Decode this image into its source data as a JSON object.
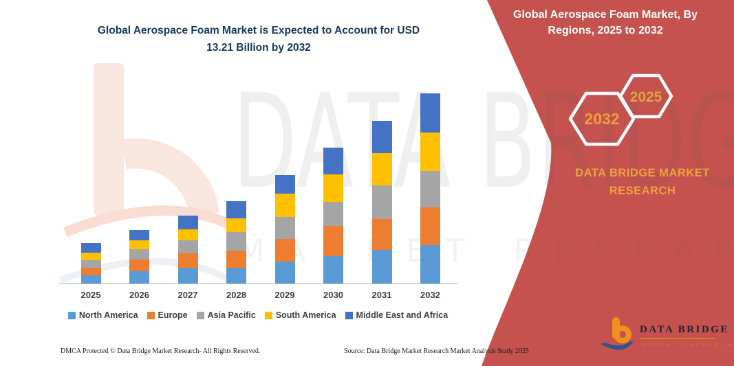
{
  "title": {
    "lines": [
      "Global Aerospace Foam Market is Expected to Account for USD",
      "13.21 Billion by 2032"
    ],
    "color": "#17375E"
  },
  "banner": {
    "color": "#C5524E",
    "heading_lines": [
      "Global Aerospace Foam Market, By",
      "Regions, 2025 to 2032"
    ],
    "hexagons": [
      {
        "label": "2032"
      },
      {
        "label": "2025"
      }
    ],
    "brand_lines": [
      "DATA BRIDGE MARKET",
      "RESEARCH"
    ],
    "accent_color": "#EFA13C"
  },
  "logo": {
    "name": "DATA BRIDGE",
    "subtitle": "MARKET RESEARCH",
    "orange": "#F2901E",
    "blue": "#2F5496"
  },
  "watermark": {
    "line1": "DATA BRIDGE",
    "line2": "MARKET RESEARCH"
  },
  "footer": {
    "left": "DMCA Protected © Data Bridge Market Research-  All Rights Reserved.",
    "right": "Source: Data Bridge Market Research  Market Analysis Study 2025"
  },
  "chart_data": {
    "type": "bar",
    "stacked": true,
    "unit": "USD Billion",
    "title": "Global Aerospace Foam Market is Expected to Account for USD 13.21 Billion by 2032",
    "categories": [
      "2025",
      "2026",
      "2027",
      "2028",
      "2029",
      "2030",
      "2031",
      "2032"
    ],
    "series": [
      {
        "name": "North America",
        "color": "#5B9BD5",
        "values": [
          0.56,
          0.84,
          1.12,
          1.1,
          1.52,
          1.9,
          2.35,
          2.67
        ]
      },
      {
        "name": "Europe",
        "color": "#ED7D31",
        "values": [
          0.56,
          0.84,
          1.0,
          1.18,
          1.58,
          2.1,
          2.15,
          2.62
        ]
      },
      {
        "name": "Asia Pacific",
        "color": "#A5A5A5",
        "values": [
          0.5,
          0.7,
          0.9,
          1.32,
          1.52,
          1.7,
          2.3,
          2.55
        ]
      },
      {
        "name": "South America",
        "color": "#FFC000",
        "values": [
          0.52,
          0.64,
          0.76,
          0.94,
          1.62,
          1.9,
          2.28,
          2.65
        ]
      },
      {
        "name": "Middle East and Africa",
        "color": "#4472C4",
        "values": [
          0.67,
          0.7,
          0.94,
          1.18,
          1.3,
          1.84,
          2.22,
          2.72
        ]
      }
    ],
    "totals": [
      2.81,
      3.72,
      4.72,
      5.72,
      7.54,
      9.44,
      11.3,
      13.21
    ],
    "ymax": 13.21,
    "grid": false,
    "legend_position": "bottom",
    "xlabel": "",
    "ylabel": ""
  }
}
